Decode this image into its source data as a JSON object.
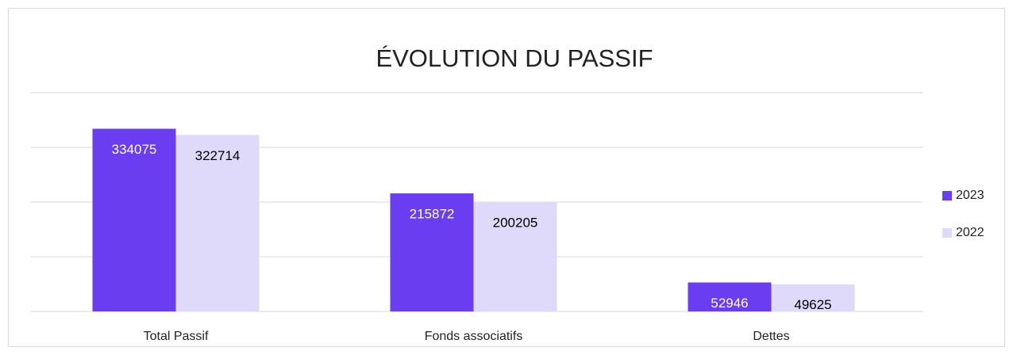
{
  "chart_data": {
    "type": "bar",
    "title": "ÉVOLUTION DU PASSIF",
    "categories": [
      "Total Passif",
      "Fonds associatifs",
      "Dettes"
    ],
    "series": [
      {
        "name": "2023",
        "color": "#6a3df0",
        "label_color": "#ffffff",
        "values": [
          334075,
          215872,
          52946
        ]
      },
      {
        "name": "2022",
        "color": "#e0dafa",
        "label_color": "#000000",
        "values": [
          322714,
          200205,
          49625
        ]
      }
    ],
    "ylim": [
      0,
      400000
    ],
    "yticks": [
      0,
      100000,
      200000,
      300000,
      400000
    ],
    "grid": true,
    "legend": "right"
  }
}
